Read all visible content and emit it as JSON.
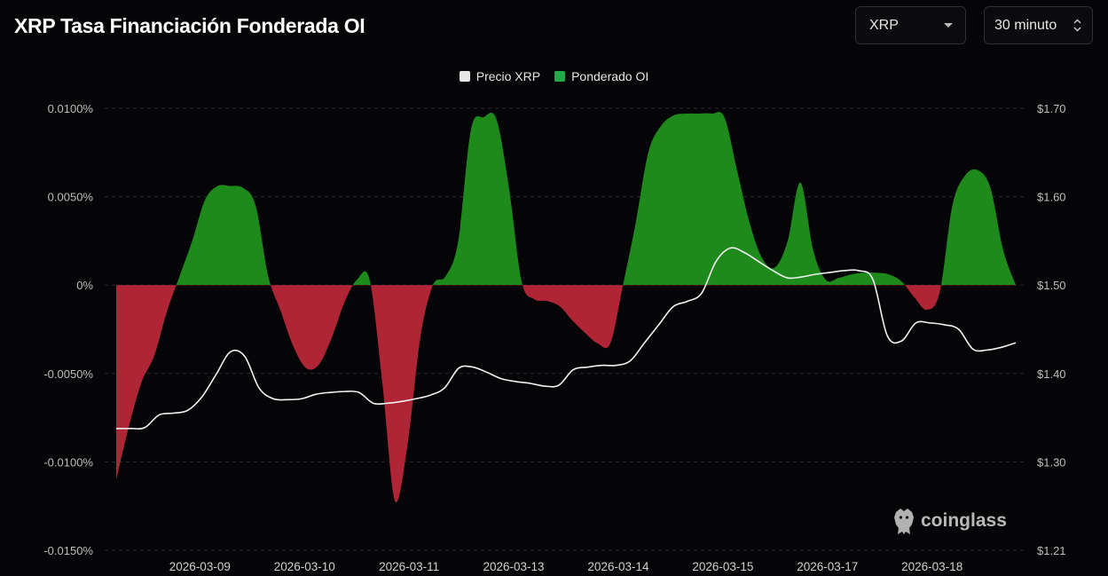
{
  "header": {
    "title": "XRP Tasa Financiación Fonderada OI",
    "symbol_select": {
      "value": "XRP"
    },
    "interval_select": {
      "value": "30 minuto"
    }
  },
  "legend": [
    {
      "label": "Precio XRP",
      "color": "#e6e6e6"
    },
    {
      "label": "Ponderado OI",
      "color": "#22a845"
    }
  ],
  "watermark": {
    "text": "coinglass"
  },
  "colors": {
    "positive": "#1e8a1c",
    "negative": "#b02535",
    "price_line": "#f2f2f2",
    "grid": "#2a2a30"
  },
  "chart_data": {
    "type": "area",
    "x_ticks": [
      "2026-03-09",
      "2026-03-10",
      "2026-03-11",
      "2026-03-13",
      "2026-03-14",
      "2026-03-15",
      "2026-03-17",
      "2026-03-18"
    ],
    "x_tick_index": [
      8,
      18,
      28,
      38,
      48,
      58,
      68,
      78
    ],
    "y_left": {
      "ticks": [
        "0.0100%",
        "0.0050%",
        "0%",
        "-0.0050%",
        "-0.0100%",
        "-0.0150%"
      ],
      "range": [
        -0.015,
        0.01
      ]
    },
    "y_right": {
      "ticks": [
        "$1.70",
        "$1.60",
        "$1.50",
        "$1.40",
        "$1.30",
        "$1.21"
      ],
      "range": [
        1.21,
        1.7
      ]
    },
    "grid": "horizontal-dashed",
    "legend_position": "top-center",
    "series": [
      {
        "name": "Ponderado OI",
        "axis": "left",
        "style": "area-signed",
        "values": [
          -0.011,
          -0.008,
          -0.0055,
          -0.004,
          -0.0015,
          0.0005,
          0.0025,
          0.0048,
          0.0056,
          0.0056,
          0.0055,
          0.0045,
          0.0005,
          -0.0015,
          -0.0035,
          -0.0047,
          -0.0045,
          -0.003,
          -0.001,
          0.0003,
          0.0003,
          -0.0055,
          -0.0122,
          -0.009,
          -0.003,
          0.0,
          0.0005,
          0.0025,
          0.0088,
          0.0095,
          0.0094,
          0.0055,
          0.0002,
          -0.0008,
          -0.0009,
          -0.0012,
          -0.002,
          -0.0027,
          -0.0033,
          -0.0033,
          0.0,
          0.0035,
          0.0075,
          0.009,
          0.0096,
          0.0097,
          0.0097,
          0.0097,
          0.0095,
          0.0065,
          0.0035,
          0.0015,
          0.001,
          0.0025,
          0.0058,
          0.002,
          0.0003,
          0.0004,
          0.0006,
          0.0007,
          0.0007,
          0.0006,
          0.0002,
          -0.0007,
          -0.0014,
          -0.0004,
          0.0045,
          0.0062,
          0.0065,
          0.0055,
          0.002,
          0.0
        ]
      },
      {
        "name": "Precio XRP",
        "axis": "right",
        "style": "line",
        "values": [
          1.345,
          1.345,
          1.346,
          1.36,
          1.362,
          1.365,
          1.38,
          1.405,
          1.43,
          1.425,
          1.39,
          1.378,
          1.377,
          1.378,
          1.383,
          1.385,
          1.386,
          1.385,
          1.373,
          1.373,
          1.375,
          1.378,
          1.382,
          1.39,
          1.412,
          1.413,
          1.407,
          1.4,
          1.397,
          1.395,
          1.392,
          1.393,
          1.41,
          1.413,
          1.415,
          1.415,
          1.42,
          1.44,
          1.46,
          1.48,
          1.486,
          1.495,
          1.53,
          1.545,
          1.54,
          1.53,
          1.52,
          1.512,
          1.513,
          1.516,
          1.518,
          1.52,
          1.52,
          1.51,
          1.448,
          1.442,
          1.462,
          1.462,
          1.46,
          1.455,
          1.433,
          1.432,
          1.435,
          1.44
        ]
      }
    ]
  }
}
